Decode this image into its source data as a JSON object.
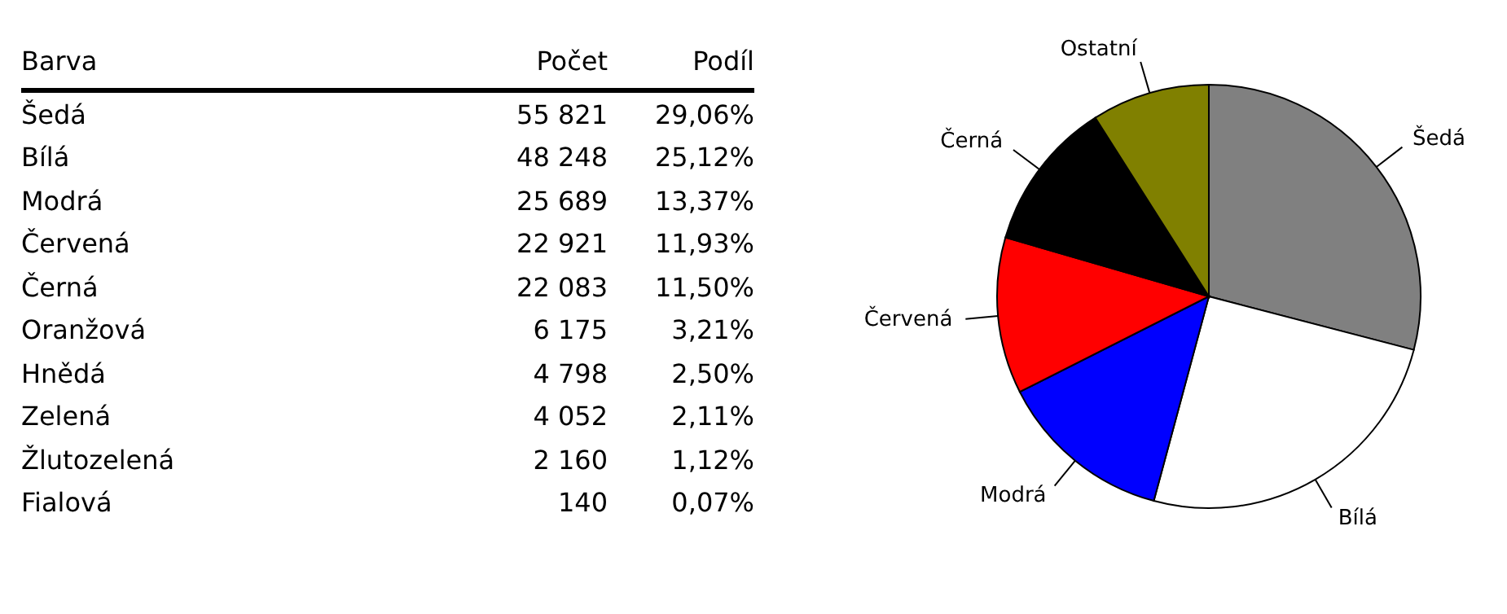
{
  "chart_data": [
    {
      "type": "other",
      "annotations": [
        "Barva",
        "Počet",
        "Podíl",
        "Šedá",
        "55 821",
        "29,06%",
        "Bílá",
        "48 248",
        "25,12%",
        "Modrá",
        "25 689",
        "13,37%",
        "Červená",
        "22 921",
        "11,93%",
        "Černá",
        "22 083",
        "11,50%",
        "Oranžová",
        "6 175",
        "3,21%",
        "Hnědá",
        "4 798",
        "2,50%",
        "Zelená",
        "4 052",
        "2,11%",
        "Žlutozelená",
        "2 160",
        "1,12%",
        "Fialová",
        "140",
        "0,07%"
      ]
    },
    {
      "type": "pie",
      "categories": [
        "Šedá",
        "Bílá",
        "Modrá",
        "Červená",
        "Černá",
        "Ostatní"
      ],
      "values": [
        29.06,
        25.12,
        13.37,
        11.93,
        11.5,
        9.01
      ],
      "colors": [
        "#808080",
        "#ffffff",
        "#0000ff",
        "#ff0000",
        "#000000",
        "#808000"
      ]
    }
  ]
}
